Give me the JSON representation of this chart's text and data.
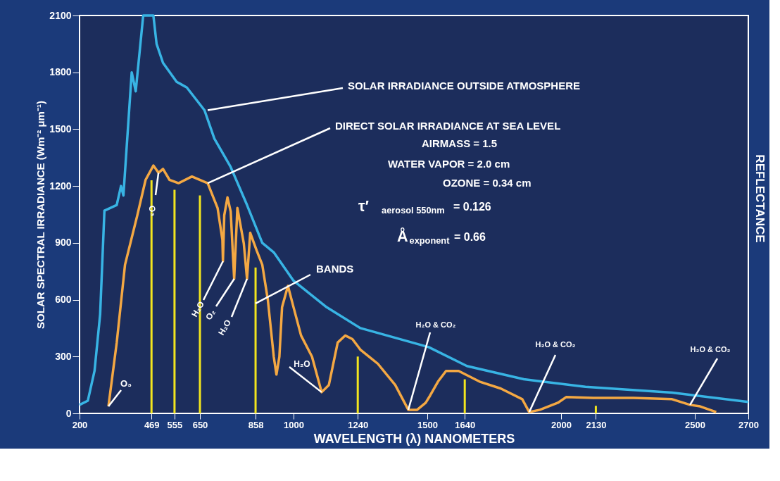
{
  "chart_data": {
    "type": "line",
    "xlabel": "WAVELENGTH (λ) NANOMETERS",
    "ylabel": "SOLAR SPECTRAL IRRADIANCE (Wm⁻² μm⁻¹)",
    "y2label": "REFLECTANCE",
    "xlim": [
      200,
      2700
    ],
    "xticks": [
      200,
      469,
      555,
      650,
      858,
      1000,
      1240,
      1500,
      1640,
      2000,
      2130,
      2500,
      2700
    ],
    "ylim": [
      0,
      2100
    ],
    "yticks": [
      0,
      300,
      600,
      900,
      1200,
      1500,
      1800,
      2100
    ],
    "series": [
      {
        "color": "#38b4e4",
        "x": [
          200,
          231,
          256,
          277,
          293,
          339,
          355,
          364,
          395,
          410,
          438,
          476,
          488,
          512,
          563,
          601,
          667,
          704,
          765,
          826,
          883,
          926,
          1000,
          1124,
          1250,
          1505,
          1648,
          1861,
          2091,
          2415,
          2700
        ],
        "values": [
          45,
          67,
          224,
          523,
          1070,
          1100,
          1200,
          1150,
          1800,
          1700,
          2100,
          2100,
          1950,
          1850,
          1750,
          1720,
          1600,
          1450,
          1300,
          1100,
          900,
          850,
          700,
          560,
          450,
          350,
          250,
          180,
          140,
          110,
          60
        ]
      },
      {
        "color": "#f4a843",
        "x": [
          308,
          339,
          370,
          416,
          447,
          476,
          495,
          512,
          536,
          570,
          620,
          679,
          716,
          734,
          736,
          741,
          753,
          765,
          778,
          790,
          814,
          826,
          838,
          862,
          883,
          904,
          926,
          936,
          947,
          957,
          979,
          1000,
          1028,
          1069,
          1105,
          1132,
          1165,
          1193,
          1220,
          1250,
          1315,
          1380,
          1429,
          1462,
          1494,
          1510,
          1540,
          1570,
          1617,
          1695,
          1775,
          1855,
          1881,
          1921,
          1988,
          2019,
          2120,
          2270,
          2415,
          2482,
          2520,
          2580
        ],
        "values": [
          37,
          374,
          785,
          1046,
          1233,
          1308,
          1270,
          1290,
          1233,
          1215,
          1250,
          1215,
          1084,
          916,
          803,
          1046,
          1140,
          1065,
          710,
          1084,
          897,
          710,
          953,
          860,
          785,
          598,
          299,
          205,
          299,
          560,
          673,
          560,
          411,
          299,
          112,
          150,
          374,
          411,
          392,
          336,
          262,
          150,
          19,
          19,
          56,
          93,
          168,
          224,
          224,
          168,
          131,
          75,
          7,
          19,
          56,
          86,
          82,
          82,
          75,
          45,
          37,
          7
        ]
      },
      {
        "type": "bar",
        "color": "#f2e51e",
        "x": [
          469,
          555,
          650,
          858,
          1240,
          1640,
          2130
        ],
        "values": [
          1230,
          1180,
          1150,
          770,
          300,
          180,
          40
        ]
      }
    ],
    "annotations": [
      {
        "text": "SOLAR IRRADIANCE OUTSIDE ATMOSPHERE",
        "x": 679,
        "y": 1600
      },
      {
        "text": "DIRECT SOLAR IRRADIANCE AT SEA LEVEL",
        "x": 679,
        "y": 1215
      },
      "AIRMASS = 1.5",
      "WATER VAPOR = 2.0 cm",
      "OZONE = 0.34 cm",
      "τ′$_{aerosol 550nm}$ = 0.126",
      "Å$_{exponent}$ = 0.66",
      {
        "text": "BANDS",
        "x": 858,
        "y": 580
      },
      {
        "text": "O₃",
        "x": 308,
        "y": 37
      },
      {
        "text": "O₃",
        "x": 495,
        "y": 1270
      },
      {
        "text": "H₂O",
        "x": 736,
        "y": 803
      },
      {
        "text": "O₂",
        "x": 778,
        "y": 710
      },
      {
        "text": "H₂O",
        "x": 826,
        "y": 710
      },
      {
        "text": "H₂O",
        "x": 1105,
        "y": 112
      },
      {
        "text": "H₂O & CO₂",
        "x": 1429,
        "y": 19
      },
      {
        "text": "H₂O & CO₂",
        "x": 1881,
        "y": 7
      },
      {
        "text": "H₂O & CO₂",
        "x": 2482,
        "y": 45
      }
    ]
  }
}
